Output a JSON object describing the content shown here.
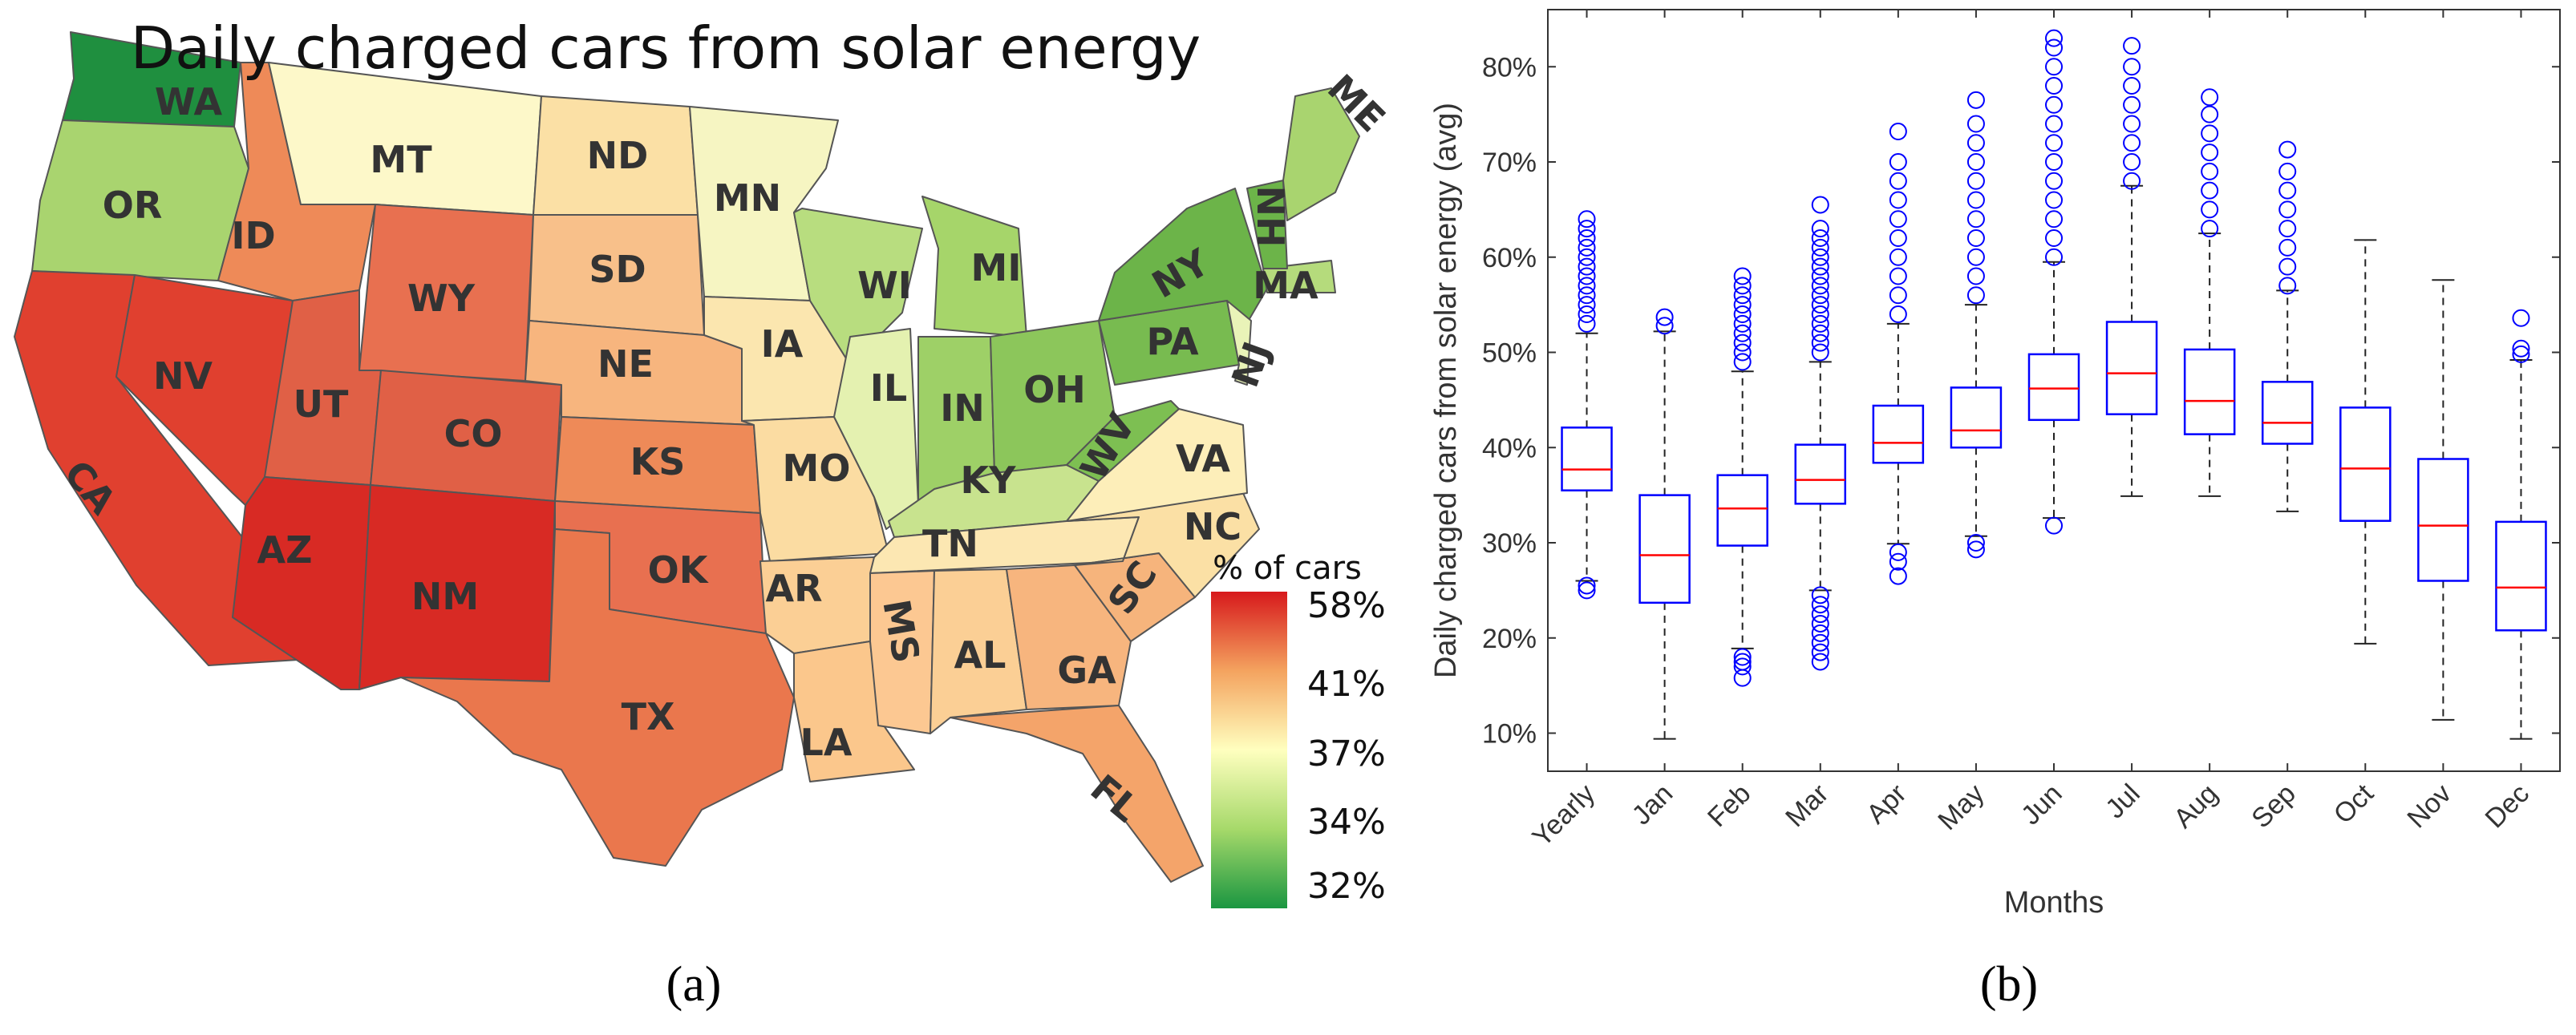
{
  "panels": {
    "a": "(a)",
    "b": "(b)"
  },
  "map": {
    "title": "Daily charged cars from solar energy",
    "legend_title": "% of cars",
    "legend_ticks": [
      "58%",
      "41%",
      "37%",
      "34%",
      "32%"
    ],
    "colors": {
      "high": "#d7191c",
      "mid_high": "#f4a35f",
      "mid": "#ffffbf",
      "mid_low": "#a6d96a",
      "low": "#1a9641"
    },
    "states": [
      "WA",
      "OR",
      "CA",
      "NV",
      "ID",
      "MT",
      "WY",
      "UT",
      "AZ",
      "CO",
      "NM",
      "ND",
      "SD",
      "NE",
      "KS",
      "OK",
      "TX",
      "MN",
      "IA",
      "MO",
      "AR",
      "LA",
      "WI",
      "IL",
      "MI",
      "IN",
      "OH",
      "KY",
      "TN",
      "MS",
      "AL",
      "GA",
      "FL",
      "SC",
      "NC",
      "VA",
      "WV",
      "PA",
      "NY",
      "NJ",
      "MA",
      "NH",
      "ME"
    ]
  },
  "chart_data": {
    "type": "box",
    "title": "",
    "xlabel": "Months",
    "ylabel": "Daily charged cars from solar energy (avg)",
    "ylim": [
      6,
      86
    ],
    "yticks": [
      "10%",
      "20%",
      "30%",
      "40%",
      "50%",
      "60%",
      "70%",
      "80%"
    ],
    "categories": [
      "Yearly",
      "Jan",
      "Feb",
      "Mar",
      "Apr",
      "May",
      "Jun",
      "Jul",
      "Aug",
      "Sep",
      "Oct",
      "Nov",
      "Dec"
    ],
    "boxes": [
      {
        "q1": 35.5,
        "median": 37.7,
        "q3": 42.1,
        "wlow": 26.0,
        "whigh": 52.0,
        "outliers_low": [
          25.5,
          25.0
        ],
        "outliers_high": [
          53,
          54,
          55,
          56,
          57,
          58,
          59,
          60,
          61,
          62,
          63,
          64
        ]
      },
      {
        "q1": 23.7,
        "median": 28.7,
        "q3": 35.0,
        "wlow": 9.4,
        "whigh": 52.2,
        "outliers_low": [],
        "outliers_high": [
          52.8,
          53.7
        ]
      },
      {
        "q1": 29.7,
        "median": 33.6,
        "q3": 37.1,
        "wlow": 18.9,
        "whigh": 48.0,
        "outliers_low": [
          18.0,
          17.5,
          17.0,
          15.8
        ],
        "outliers_high": [
          49,
          50,
          51,
          52,
          53,
          54,
          55,
          56,
          57,
          58
        ]
      },
      {
        "q1": 34.1,
        "median": 36.6,
        "q3": 40.3,
        "wlow": 25.0,
        "whigh": 49.0,
        "outliers_low": [
          24.5,
          23.5,
          22.5,
          21.5,
          20.5,
          19.5,
          18.5,
          17.5
        ],
        "outliers_high": [
          50,
          51,
          52,
          53,
          54,
          55,
          56,
          57,
          58,
          59,
          60,
          61,
          62,
          63,
          65.5
        ]
      },
      {
        "q1": 38.4,
        "median": 40.5,
        "q3": 44.4,
        "wlow": 29.9,
        "whigh": 53.0,
        "outliers_low": [
          29.0,
          28.0,
          26.5
        ],
        "outliers_high": [
          54,
          56,
          58,
          60,
          62,
          64,
          66,
          68,
          70,
          73.2
        ]
      },
      {
        "q1": 40.0,
        "median": 41.8,
        "q3": 46.3,
        "wlow": 30.7,
        "whigh": 55.0,
        "outliers_low": [
          30.0,
          29.3
        ],
        "outliers_high": [
          56,
          58,
          60,
          62,
          64,
          66,
          68,
          70,
          72,
          74,
          76.5
        ]
      },
      {
        "q1": 42.9,
        "median": 46.2,
        "q3": 49.8,
        "wlow": 32.6,
        "whigh": 59.5,
        "outliers_low": [
          31.8
        ],
        "outliers_high": [
          60,
          62,
          64,
          66,
          68,
          70,
          72,
          74,
          76,
          78,
          80,
          82,
          83.0
        ]
      },
      {
        "q1": 43.5,
        "median": 47.8,
        "q3": 53.2,
        "wlow": 34.9,
        "whigh": 67.5,
        "outliers_low": [],
        "outliers_high": [
          68,
          70,
          72,
          74,
          76,
          78,
          80,
          82.2
        ]
      },
      {
        "q1": 41.4,
        "median": 44.9,
        "q3": 50.3,
        "wlow": 34.9,
        "whigh": 62.5,
        "outliers_low": [],
        "outliers_high": [
          63,
          65,
          67,
          69,
          71,
          73,
          75,
          76.8
        ]
      },
      {
        "q1": 40.4,
        "median": 42.6,
        "q3": 46.9,
        "wlow": 33.3,
        "whigh": 56.5,
        "outliers_low": [],
        "outliers_high": [
          57,
          59,
          61,
          63,
          65,
          67,
          69,
          71.3
        ]
      },
      {
        "q1": 32.3,
        "median": 37.8,
        "q3": 44.2,
        "wlow": 19.4,
        "whigh": 61.8,
        "outliers_low": [],
        "outliers_high": []
      },
      {
        "q1": 26.0,
        "median": 31.8,
        "q3": 38.8,
        "wlow": 11.4,
        "whigh": 57.6,
        "outliers_low": [],
        "outliers_high": []
      },
      {
        "q1": 20.8,
        "median": 25.3,
        "q3": 32.2,
        "wlow": 9.4,
        "whigh": 49.2,
        "outliers_low": [],
        "outliers_high": [
          49.8,
          50.4,
          53.6
        ]
      }
    ],
    "box_color": "#0000ff",
    "median_color": "#ff0000"
  }
}
